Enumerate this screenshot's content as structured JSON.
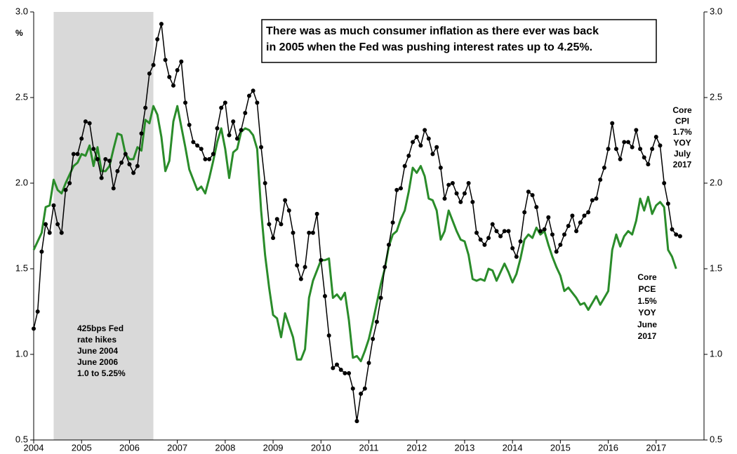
{
  "chart_data": {
    "type": "line",
    "title_lines": [
      "There was as much consumer inflation as there ever was back",
      "in 2005 when the Fed was pushing interest rates up to 4.25%."
    ],
    "y_label": "%",
    "shaded_range": [
      2004.417,
      2006.5
    ],
    "shaded_label_lines": [
      "425bps Fed",
      "rate hikes",
      "June 2004",
      "June 2006",
      "1.0 to 5.25%"
    ],
    "annotations": [
      {
        "lines": [
          "Core",
          "CPI",
          "1.7%",
          "YOY",
          "July",
          "2017"
        ]
      },
      {
        "lines": [
          "Core",
          "PCE",
          "1.5%",
          "YOY",
          "June",
          "2017"
        ]
      }
    ],
    "xlim": [
      2004,
      2018
    ],
    "xticks": [
      2004,
      2005,
      2006,
      2007,
      2008,
      2009,
      2010,
      2011,
      2012,
      2013,
      2014,
      2015,
      2016,
      2017
    ],
    "ylim": [
      0.5,
      3
    ],
    "yticks": [
      0.5,
      {
        "value": 1,
        "label": "1.0"
      },
      1.5,
      {
        "value": 2,
        "label": "2.0"
      },
      2.5,
      {
        "value": 3,
        "label": "3.0"
      }
    ],
    "y2lim": [
      0.5,
      3
    ],
    "y2ticks": [
      0.5,
      {
        "value": 1,
        "label": "1.0"
      },
      1.5,
      {
        "value": 2,
        "label": "2.0"
      },
      2.5,
      {
        "value": 3,
        "label": "3.0"
      }
    ],
    "grid": false,
    "x": [
      2004,
      2004.083,
      2004.167,
      2004.25,
      2004.333,
      2004.417,
      2004.5,
      2004.583,
      2004.667,
      2004.75,
      2004.833,
      2004.917,
      2005,
      2005.083,
      2005.167,
      2005.25,
      2005.333,
      2005.417,
      2005.5,
      2005.583,
      2005.667,
      2005.75,
      2005.833,
      2005.917,
      2006,
      2006.083,
      2006.167,
      2006.25,
      2006.333,
      2006.417,
      2006.5,
      2006.583,
      2006.667,
      2006.75,
      2006.833,
      2006.917,
      2007,
      2007.083,
      2007.167,
      2007.25,
      2007.333,
      2007.417,
      2007.5,
      2007.583,
      2007.667,
      2007.75,
      2007.833,
      2007.917,
      2008,
      2008.083,
      2008.167,
      2008.25,
      2008.333,
      2008.417,
      2008.5,
      2008.583,
      2008.667,
      2008.75,
      2008.833,
      2008.917,
      2009,
      2009.083,
      2009.167,
      2009.25,
      2009.333,
      2009.417,
      2009.5,
      2009.583,
      2009.667,
      2009.75,
      2009.833,
      2009.917,
      2010,
      2010.083,
      2010.167,
      2010.25,
      2010.333,
      2010.417,
      2010.5,
      2010.583,
      2010.667,
      2010.75,
      2010.833,
      2010.917,
      2011,
      2011.083,
      2011.167,
      2011.25,
      2011.333,
      2011.417,
      2011.5,
      2011.583,
      2011.667,
      2011.75,
      2011.833,
      2011.917,
      2012,
      2012.083,
      2012.167,
      2012.25,
      2012.333,
      2012.417,
      2012.5,
      2012.583,
      2012.667,
      2012.75,
      2012.833,
      2012.917,
      2013,
      2013.083,
      2013.167,
      2013.25,
      2013.333,
      2013.417,
      2013.5,
      2013.583,
      2013.667,
      2013.75,
      2013.833,
      2013.917,
      2014,
      2014.083,
      2014.167,
      2014.25,
      2014.333,
      2014.417,
      2014.5,
      2014.583,
      2014.667,
      2014.75,
      2014.833,
      2014.917,
      2015,
      2015.083,
      2015.167,
      2015.25,
      2015.333,
      2015.417,
      2015.5,
      2015.583,
      2015.667,
      2015.75,
      2015.833,
      2015.917,
      2016,
      2016.083,
      2016.167,
      2016.25,
      2016.333,
      2016.417,
      2016.5,
      2016.583,
      2016.667,
      2016.75,
      2016.833,
      2016.917,
      2017,
      2017.083,
      2017.167,
      2017.25,
      2017.333,
      2017.417,
      2017.5
    ],
    "series": [
      {
        "color": "#000000",
        "markers": true,
        "width": 1.5,
        "values": [
          1.15,
          1.25,
          1.6,
          1.76,
          1.71,
          1.87,
          1.76,
          1.71,
          1.96,
          2.0,
          2.17,
          2.17,
          2.26,
          2.36,
          2.35,
          2.2,
          2.14,
          2.03,
          2.14,
          2.13,
          1.97,
          2.07,
          2.12,
          2.17,
          2.11,
          2.06,
          2.1,
          2.29,
          2.44,
          2.64,
          2.69,
          2.84,
          2.93,
          2.72,
          2.62,
          2.57,
          2.66,
          2.71,
          2.47,
          2.34,
          2.24,
          2.22,
          2.2,
          2.14,
          2.14,
          2.17,
          2.32,
          2.44,
          2.47,
          2.28,
          2.36,
          2.26,
          2.31,
          2.41,
          2.51,
          2.54,
          2.47,
          2.21,
          2.0,
          1.76,
          1.68,
          1.79,
          1.76,
          1.9,
          1.84,
          1.71,
          1.52,
          1.44,
          1.51,
          1.71,
          1.71,
          1.82,
          1.55,
          1.34,
          1.11,
          0.92,
          0.94,
          0.91,
          0.89,
          0.89,
          0.8,
          0.61,
          0.77,
          0.8,
          0.95,
          1.09,
          1.19,
          1.33,
          1.51,
          1.64,
          1.77,
          1.96,
          1.97,
          2.1,
          2.16,
          2.24,
          2.27,
          2.22,
          2.31,
          2.26,
          2.17,
          2.21,
          2.09,
          1.91,
          1.99,
          2.0,
          1.94,
          1.89,
          1.94,
          2.0,
          1.89,
          1.71,
          1.67,
          1.64,
          1.68,
          1.76,
          1.72,
          1.69,
          1.72,
          1.72,
          1.62,
          1.57,
          1.66,
          1.83,
          1.95,
          1.93,
          1.86,
          1.72,
          1.73,
          1.8,
          1.7,
          1.6,
          1.64,
          1.7,
          1.75,
          1.81,
          1.72,
          1.77,
          1.81,
          1.83,
          1.9,
          1.91,
          2.02,
          2.09,
          2.2,
          2.35,
          2.2,
          2.14,
          2.24,
          2.24,
          2.21,
          2.31,
          2.2,
          2.15,
          2.11,
          2.2,
          2.27,
          2.22,
          2.0,
          1.88,
          1.73,
          1.7,
          1.69
        ]
      },
      {
        "color": "#2a8c2a",
        "markers": false,
        "width": 3,
        "values": [
          1.61,
          1.66,
          1.71,
          1.86,
          1.87,
          2.02,
          1.96,
          1.94,
          2.0,
          2.05,
          2.1,
          2.12,
          2.17,
          2.16,
          2.22,
          2.1,
          2.21,
          2.07,
          2.07,
          2.1,
          2.2,
          2.29,
          2.28,
          2.17,
          2.14,
          2.14,
          2.21,
          2.19,
          2.37,
          2.35,
          2.45,
          2.4,
          2.27,
          2.07,
          2.13,
          2.36,
          2.45,
          2.33,
          2.21,
          2.08,
          2.02,
          1.96,
          1.98,
          1.94,
          2.03,
          2.13,
          2.24,
          2.32,
          2.2,
          2.03,
          2.18,
          2.2,
          2.3,
          2.32,
          2.31,
          2.28,
          2.2,
          1.84,
          1.58,
          1.39,
          1.23,
          1.21,
          1.1,
          1.24,
          1.17,
          1.1,
          0.97,
          0.97,
          1.03,
          1.33,
          1.43,
          1.49,
          1.55,
          1.55,
          1.56,
          1.33,
          1.35,
          1.32,
          1.36,
          1.2,
          0.98,
          0.99,
          0.96,
          1.02,
          1.09,
          1.19,
          1.3,
          1.41,
          1.5,
          1.63,
          1.7,
          1.72,
          1.79,
          1.84,
          1.95,
          2.09,
          2.06,
          2.1,
          2.04,
          1.91,
          1.9,
          1.84,
          1.67,
          1.72,
          1.84,
          1.78,
          1.72,
          1.67,
          1.66,
          1.58,
          1.44,
          1.43,
          1.44,
          1.43,
          1.5,
          1.49,
          1.43,
          1.48,
          1.53,
          1.48,
          1.42,
          1.47,
          1.56,
          1.67,
          1.7,
          1.68,
          1.74,
          1.7,
          1.72,
          1.64,
          1.57,
          1.51,
          1.46,
          1.37,
          1.39,
          1.36,
          1.33,
          1.29,
          1.3,
          1.26,
          1.3,
          1.34,
          1.29,
          1.33,
          1.37,
          1.61,
          1.7,
          1.63,
          1.69,
          1.72,
          1.7,
          1.78,
          1.91,
          1.84,
          1.92,
          1.82,
          1.87,
          1.89,
          1.86,
          1.61,
          1.57,
          1.5,
          null
        ]
      }
    ]
  }
}
